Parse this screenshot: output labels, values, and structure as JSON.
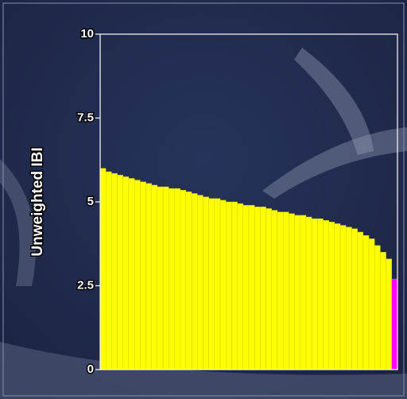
{
  "chart_data": {
    "type": "bar",
    "y_label": "Unweighted IBI",
    "categories": [
      null,
      null,
      null,
      null,
      null,
      null,
      null,
      null,
      null,
      null,
      null,
      null,
      null,
      null,
      null,
      null,
      null,
      null,
      null,
      null,
      null,
      null,
      null,
      null,
      null,
      null,
      null,
      null,
      null,
      null,
      null,
      null,
      null,
      null,
      null,
      null,
      null,
      null,
      null,
      null,
      null,
      null,
      null,
      null,
      null,
      null,
      null,
      null,
      null,
      null,
      null,
      null
    ],
    "values": [
      6.0,
      5.9,
      5.85,
      5.8,
      5.75,
      5.7,
      5.65,
      5.6,
      5.55,
      5.5,
      5.45,
      5.45,
      5.4,
      5.4,
      5.35,
      5.3,
      5.25,
      5.2,
      5.15,
      5.1,
      5.1,
      5.05,
      5.0,
      5.0,
      4.95,
      4.9,
      4.9,
      4.85,
      4.85,
      4.8,
      4.75,
      4.7,
      4.7,
      4.65,
      4.6,
      4.6,
      4.55,
      4.5,
      4.5,
      4.45,
      4.4,
      4.35,
      4.3,
      4.25,
      4.2,
      4.1,
      4.0,
      3.9,
      3.7,
      3.5,
      3.3,
      2.7
    ],
    "colors": [
      "#ffff00",
      "#ffff00",
      "#ffff00",
      "#ffff00",
      "#ffff00",
      "#ffff00",
      "#ffff00",
      "#ffff00",
      "#ffff00",
      "#ffff00",
      "#ffff00",
      "#ffff00",
      "#ffff00",
      "#ffff00",
      "#ffff00",
      "#ffff00",
      "#ffff00",
      "#ffff00",
      "#ffff00",
      "#ffff00",
      "#ffff00",
      "#ffff00",
      "#ffff00",
      "#ffff00",
      "#ffff00",
      "#ffff00",
      "#ffff00",
      "#ffff00",
      "#ffff00",
      "#ffff00",
      "#ffff00",
      "#ffff00",
      "#ffff00",
      "#ffff00",
      "#ffff00",
      "#ffff00",
      "#ffff00",
      "#ffff00",
      "#ffff00",
      "#ffff00",
      "#ffff00",
      "#ffff00",
      "#ffff00",
      "#ffff00",
      "#ffff00",
      "#ffff00",
      "#ffff00",
      "#ffff00",
      "#ffff00",
      "#ffff00",
      "#ffff00",
      "#ff00ff"
    ],
    "ylim": [
      0,
      10
    ],
    "yticks": [
      0,
      2.5,
      5,
      7.5,
      10
    ]
  }
}
